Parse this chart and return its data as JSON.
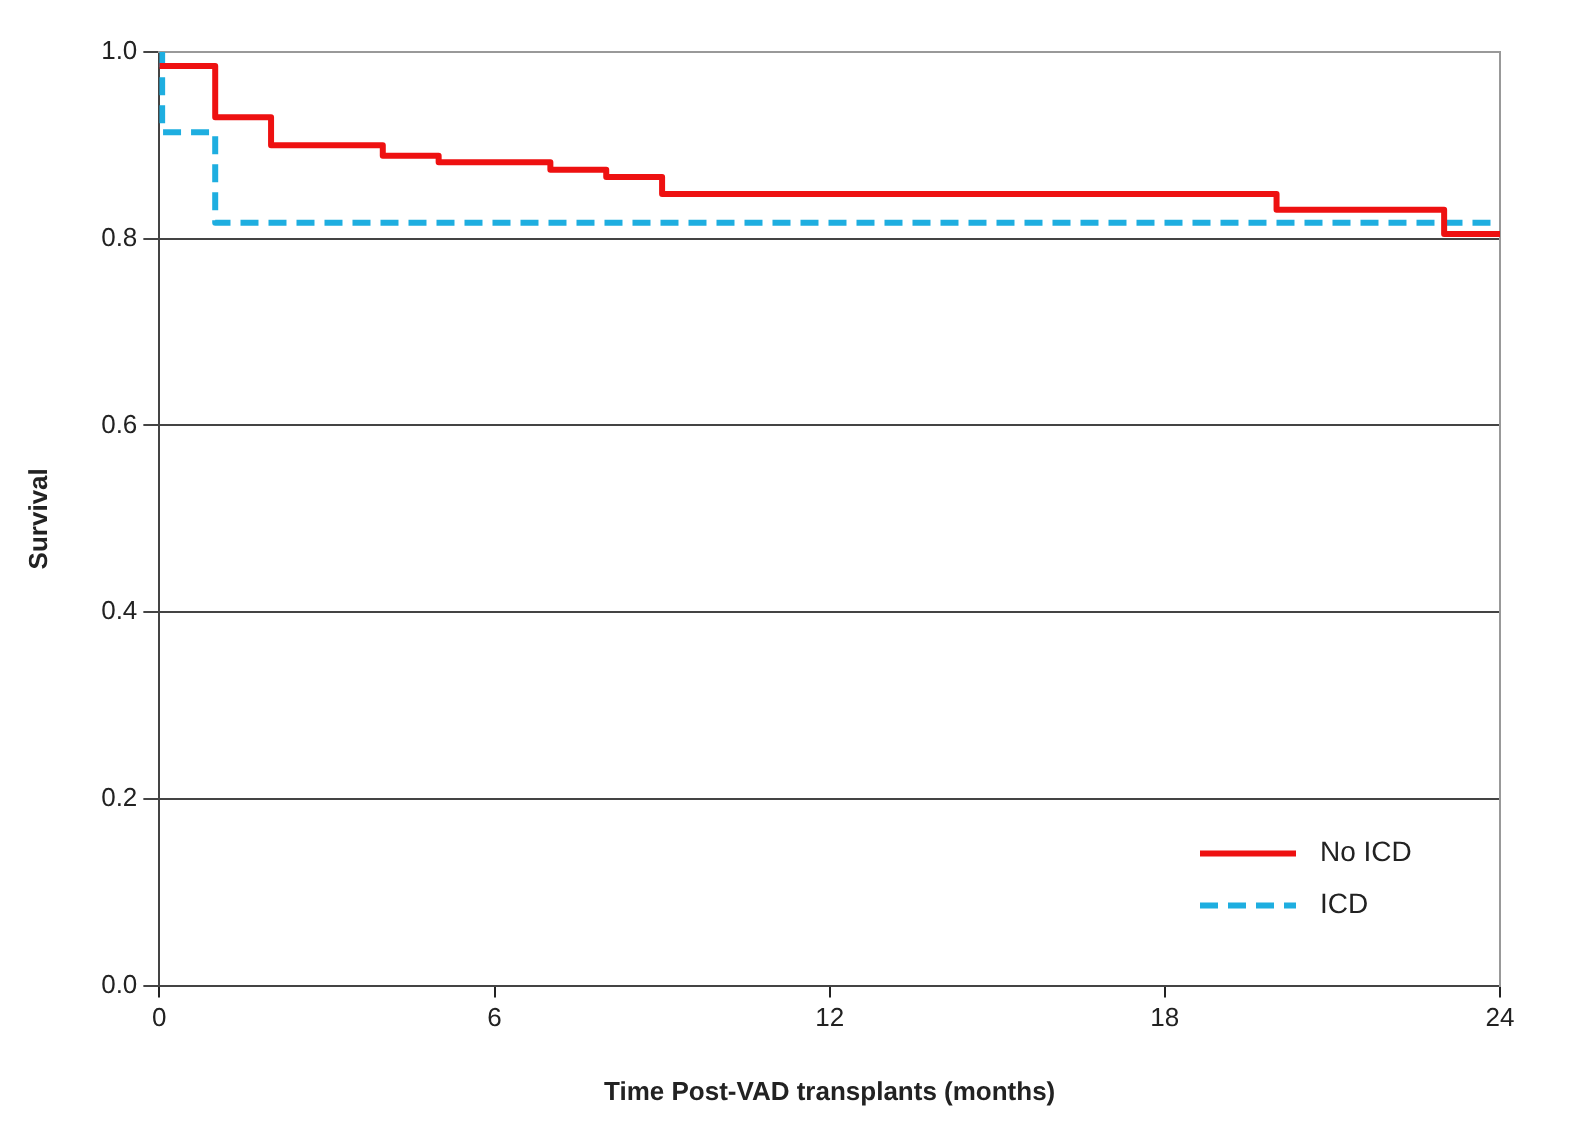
{
  "chart_data": {
    "type": "step",
    "xlabel": "Time Post-VAD transplants (months)",
    "ylabel": "Survival",
    "xlim": [
      0,
      24
    ],
    "xticks": [
      0,
      6,
      12,
      18,
      24
    ],
    "ylim": [
      0,
      1
    ],
    "yticks": [
      {
        "value": 0,
        "label": "0.0"
      },
      {
        "value": 0.2,
        "label": "0.2"
      },
      {
        "value": 0.4,
        "label": "0.4"
      },
      {
        "value": 0.6,
        "label": "0.6"
      },
      {
        "value": 0.8,
        "label": "0.8"
      },
      {
        "value": 1,
        "label": "1.0"
      }
    ],
    "grid": "y",
    "legend": "bottom right",
    "series": [
      {
        "name": "No ICD",
        "color": "#ee1111",
        "line_style": "solid",
        "x": [
          0,
          1,
          2,
          4,
          5,
          7,
          8,
          9,
          20,
          23,
          24
        ],
        "values": [
          0.985,
          0.93,
          0.9,
          0.889,
          0.882,
          0.874,
          0.866,
          0.848,
          0.831,
          0.805,
          0.805
        ]
      },
      {
        "name": "ICD",
        "color": "#1eaee0",
        "line_style": "dashed",
        "x": [
          0,
          0.05,
          1,
          24
        ],
        "values": [
          1,
          0.914,
          0.817,
          0.817
        ]
      }
    ]
  }
}
